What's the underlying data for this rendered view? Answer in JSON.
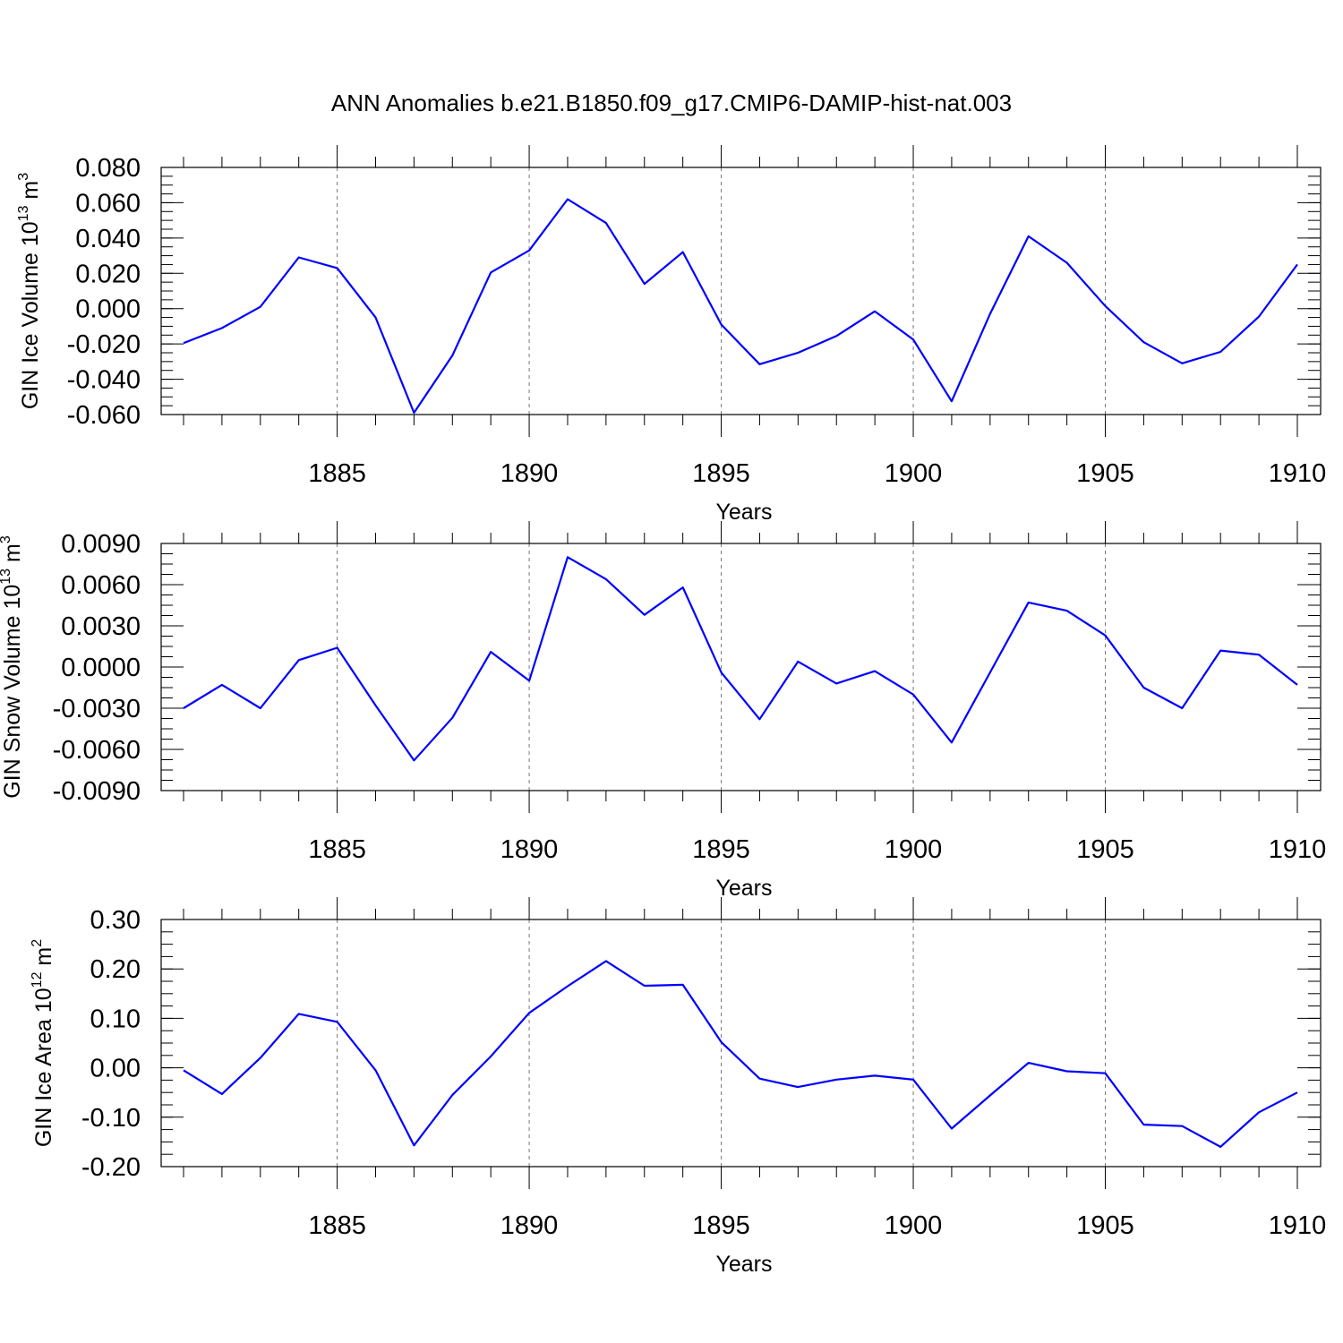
{
  "title": "ANN Anomalies b.e21.B1850.f09_g17.CMIP6-DAMIP-hist-nat.003",
  "colors": {
    "line": "#0000ff",
    "frame": "#000000",
    "grid": "#777777",
    "background": "#ffffff"
  },
  "chart_data": [
    {
      "type": "line",
      "title": "",
      "xlabel": "Years",
      "ylabel": "GIN Ice Volume 10",
      "ylabel_exponent": "13",
      "ylabel_unit": "m",
      "ylabel_unit_exponent": "3",
      "xlim": [
        1881,
        1910
      ],
      "ylim": [
        -0.06,
        0.08
      ],
      "x_ticks": [
        1885,
        1890,
        1895,
        1900,
        1905,
        1910
      ],
      "x_tick_labels": [
        "1885",
        "1890",
        "1895",
        "1900",
        "1905",
        "1910"
      ],
      "y_ticks": [
        -0.06,
        -0.04,
        -0.02,
        0.0,
        0.02,
        0.04,
        0.06,
        0.08
      ],
      "y_tick_labels": [
        "-0.060",
        "-0.040",
        "-0.020",
        "0.000",
        "0.020",
        "0.040",
        "0.060",
        "0.080"
      ],
      "y_minor_step": 0.005,
      "grid": "vertical dashed at major x ticks",
      "x": [
        1881,
        1882,
        1883,
        1884,
        1885,
        1886,
        1887,
        1888,
        1889,
        1890,
        1891,
        1892,
        1893,
        1894,
        1895,
        1896,
        1897,
        1898,
        1899,
        1900,
        1901,
        1902,
        1903,
        1904,
        1905,
        1906,
        1907,
        1908,
        1909,
        1910
      ],
      "series": [
        {
          "values": [
            -0.0195,
            -0.011,
            0.001,
            0.029,
            0.023,
            -0.005,
            -0.059,
            -0.0265,
            0.0205,
            0.033,
            0.062,
            0.0485,
            0.014,
            0.032,
            -0.009,
            -0.0315,
            -0.025,
            -0.0155,
            -0.0015,
            -0.0175,
            -0.0525,
            -0.003,
            0.041,
            0.026,
            0.0015,
            -0.019,
            -0.031,
            -0.0245,
            -0.0045,
            0.025
          ]
        }
      ]
    },
    {
      "type": "line",
      "title": "",
      "xlabel": "Years",
      "ylabel": "GIN Snow Volume 10",
      "ylabel_exponent": "13",
      "ylabel_unit": "m",
      "ylabel_unit_exponent": "3",
      "xlim": [
        1881,
        1910
      ],
      "ylim": [
        -0.009,
        0.009
      ],
      "x_ticks": [
        1885,
        1890,
        1895,
        1900,
        1905,
        1910
      ],
      "x_tick_labels": [
        "1885",
        "1890",
        "1895",
        "1900",
        "1905",
        "1910"
      ],
      "y_ticks": [
        -0.009,
        -0.006,
        -0.003,
        0.0,
        0.003,
        0.006,
        0.009
      ],
      "y_tick_labels": [
        "-0.0090",
        "-0.0060",
        "-0.0030",
        "0.0000",
        "0.0030",
        "0.0060",
        "0.0090"
      ],
      "y_minor_step": 0.00075,
      "grid": "vertical dashed at major x ticks",
      "x": [
        1881,
        1882,
        1883,
        1884,
        1885,
        1886,
        1887,
        1888,
        1889,
        1890,
        1891,
        1892,
        1893,
        1894,
        1895,
        1896,
        1897,
        1898,
        1899,
        1900,
        1901,
        1902,
        1903,
        1904,
        1905,
        1906,
        1907,
        1908,
        1909,
        1910
      ],
      "series": [
        {
          "values": [
            -0.003,
            -0.0013,
            -0.003,
            0.0005,
            0.0014,
            -0.0028,
            -0.0068,
            -0.0037,
            0.0011,
            -0.001,
            0.008,
            0.0064,
            0.0038,
            0.0058,
            -0.0004,
            -0.0038,
            0.0004,
            -0.0012,
            -0.0003,
            -0.002,
            -0.0055,
            -0.0004,
            0.0047,
            0.0041,
            0.0023,
            -0.0015,
            -0.003,
            0.0012,
            0.0009,
            -0.0013
          ]
        }
      ]
    },
    {
      "type": "line",
      "title": "",
      "xlabel": "Years",
      "ylabel": "GIN Ice Area 10",
      "ylabel_exponent": "12",
      "ylabel_unit": "m",
      "ylabel_unit_exponent": "2",
      "xlim": [
        1881,
        1910
      ],
      "ylim": [
        -0.2,
        0.3
      ],
      "x_ticks": [
        1885,
        1890,
        1895,
        1900,
        1905,
        1910
      ],
      "x_tick_labels": [
        "1885",
        "1890",
        "1895",
        "1900",
        "1905",
        "1910"
      ],
      "y_ticks": [
        -0.2,
        -0.1,
        0.0,
        0.1,
        0.2,
        0.3
      ],
      "y_tick_labels": [
        "-0.20",
        "-0.10",
        "0.00",
        "0.10",
        "0.20",
        "0.30"
      ],
      "y_minor_step": 0.025,
      "grid": "vertical dashed at major x ticks",
      "x": [
        1881,
        1882,
        1883,
        1884,
        1885,
        1886,
        1887,
        1888,
        1889,
        1890,
        1891,
        1892,
        1893,
        1894,
        1895,
        1896,
        1897,
        1898,
        1899,
        1900,
        1901,
        1902,
        1903,
        1904,
        1905,
        1906,
        1907,
        1908,
        1909,
        1910
      ],
      "series": [
        {
          "values": [
            -0.005,
            -0.053,
            0.02,
            0.109,
            0.093,
            -0.005,
            -0.157,
            -0.055,
            0.023,
            0.111,
            0.165,
            0.216,
            0.166,
            0.168,
            0.052,
            -0.022,
            -0.039,
            -0.024,
            -0.016,
            -0.024,
            -0.123,
            -0.056,
            0.01,
            -0.007,
            -0.011,
            -0.115,
            -0.118,
            -0.16,
            -0.09,
            -0.05
          ]
        }
      ]
    }
  ]
}
